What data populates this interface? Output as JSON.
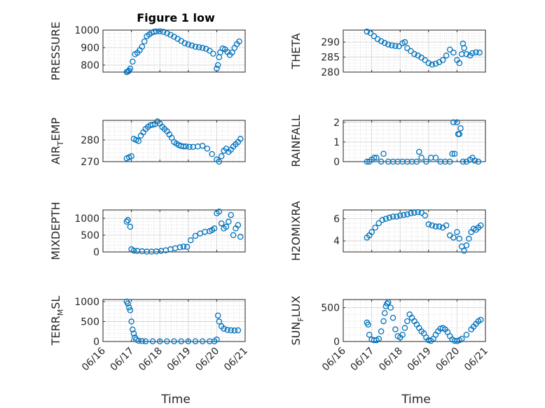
{
  "figure": {
    "title": "Figure 1 low",
    "xlabel": "Time"
  },
  "colors": {
    "marker": "#0072bd",
    "axes": "#262626",
    "grid": "#d0d0d0"
  },
  "x_ticks": [
    "06/16",
    "06/17",
    "06/18",
    "06/19",
    "06/20",
    "06/21"
  ],
  "chart_data": [
    {
      "type": "scatter",
      "ylabel": "PRESSURE",
      "ylabel_sub": "",
      "yticks": [
        "800",
        "900",
        "1000"
      ],
      "ylim": [
        760,
        1000
      ],
      "grid": true,
      "x": [
        "06/16 20:00",
        "06/16 21:00",
        "06/16 22:00",
        "06/16 23:00",
        "06/17 01:00",
        "06/17 03:00",
        "06/17 05:00",
        "06/17 07:00",
        "06/17 09:00",
        "06/17 11:00",
        "06/17 13:00",
        "06/17 15:00",
        "06/17 17:00",
        "06/17 19:00",
        "06/17 21:00",
        "06/18 00:00",
        "06/18 03:00",
        "06/18 06:00",
        "06/18 09:00",
        "06/18 12:00",
        "06/18 15:00",
        "06/18 18:00",
        "06/18 21:00",
        "06/19 00:00",
        "06/19 03:00",
        "06/19 06:00",
        "06/19 09:00",
        "06/19 12:00",
        "06/19 15:00",
        "06/19 18:00",
        "06/19 21:00",
        "06/20 00:00",
        "06/20 01:00",
        "06/20 02:00",
        "06/20 03:00",
        "06/20 05:00",
        "06/20 07:00",
        "06/20 09:00",
        "06/20 11:00",
        "06/20 13:00",
        "06/20 15:00",
        "06/20 17:00",
        "06/20 19:00"
      ],
      "values": [
        760,
        763,
        768,
        780,
        820,
        862,
        870,
        885,
        905,
        935,
        965,
        975,
        985,
        990,
        992,
        993,
        990,
        982,
        973,
        962,
        950,
        938,
        925,
        918,
        912,
        905,
        902,
        898,
        893,
        882,
        865,
        780,
        800,
        845,
        873,
        895,
        890,
        875,
        858,
        872,
        898,
        920,
        935
      ]
    },
    {
      "type": "scatter",
      "ylabel": "THETA",
      "ylabel_sub": "",
      "yticks": [
        "280",
        "285",
        "290"
      ],
      "ylim": [
        280,
        294
      ],
      "grid": true,
      "x": [
        "06/16 20:00",
        "06/16 23:00",
        "06/17 02:00",
        "06/17 05:00",
        "06/17 08:00",
        "06/17 11:00",
        "06/17 14:00",
        "06/17 17:00",
        "06/17 20:00",
        "06/17 23:00",
        "06/18 02:00",
        "06/18 04:00",
        "06/18 06:00",
        "06/18 09:00",
        "06/18 12:00",
        "06/18 15:00",
        "06/18 18:00",
        "06/18 21:00",
        "06/19 00:00",
        "06/19 03:00",
        "06/19 06:00",
        "06/19 09:00",
        "06/19 12:00",
        "06/19 15:00",
        "06/19 18:00",
        "06/19 21:00",
        "06/20 00:00",
        "06/20 02:00",
        "06/20 04:00",
        "06/20 05:00",
        "06/20 06:00",
        "06/20 08:00",
        "06/20 11:00",
        "06/20 13:00",
        "06/20 16:00",
        "06/20 19:00"
      ],
      "values": [
        293.5,
        293,
        292,
        291,
        290.3,
        289.7,
        289.2,
        288.9,
        288.7,
        288.6,
        289.6,
        290,
        288,
        287,
        286,
        285.5,
        284.8,
        284,
        283,
        282.5,
        282.8,
        283.3,
        284,
        285.5,
        287.5,
        286.5,
        284,
        283,
        286,
        289.5,
        288,
        286,
        285.5,
        286.3,
        286.6,
        286.5
      ]
    },
    {
      "type": "scatter",
      "ylabel": "AIR",
      "ylabel_sub": "T",
      "ylabel_suffix": "EMP",
      "yticks": [
        "270",
        "280"
      ],
      "ylim": [
        270,
        289
      ],
      "grid": true,
      "x": [
        "06/16 20:00",
        "06/16 22:00",
        "06/17 00:00",
        "06/17 02:00",
        "06/17 04:00",
        "06/17 06:00",
        "06/17 08:00",
        "06/17 10:00",
        "06/17 12:00",
        "06/17 14:00",
        "06/17 16:00",
        "06/17 18:00",
        "06/17 20:00",
        "06/17 22:00",
        "06/18 00:00",
        "06/18 02:00",
        "06/18 04:00",
        "06/18 06:00",
        "06/18 08:00",
        "06/18 10:00",
        "06/18 12:00",
        "06/18 14:00",
        "06/18 16:00",
        "06/18 18:00",
        "06/18 20:00",
        "06/18 22:00",
        "06/19 01:00",
        "06/19 04:00",
        "06/19 08:00",
        "06/19 12:00",
        "06/19 16:00",
        "06/19 20:00",
        "06/20 00:00",
        "06/20 02:00",
        "06/20 04:00",
        "06/20 06:00",
        "06/20 08:00",
        "06/20 10:00",
        "06/20 12:00",
        "06/20 14:00",
        "06/20 16:00",
        "06/20 18:00",
        "06/20 20:00"
      ],
      "values": [
        271.5,
        272,
        272.5,
        280.5,
        280,
        279.5,
        282,
        283.5,
        285,
        286,
        286.8,
        287,
        287.3,
        288.5,
        287.5,
        286,
        285,
        284,
        282.5,
        281,
        279,
        278.3,
        277.6,
        277.2,
        277,
        277,
        276.8,
        276.8,
        277,
        277.3,
        276,
        273.5,
        271,
        270,
        272.5,
        275,
        276,
        274.5,
        275.5,
        277,
        278,
        279,
        280.5
      ]
    },
    {
      "type": "scatter",
      "ylabel": "RAINFALL",
      "ylabel_sub": "",
      "yticks": [
        "0",
        "1",
        "2"
      ],
      "ylim": [
        0,
        2.1
      ],
      "grid": true,
      "x": [
        "06/16 20:00",
        "06/16 22:00",
        "06/17 00:00",
        "06/17 02:00",
        "06/17 04:00",
        "06/17 08:00",
        "06/17 10:00",
        "06/17 14:00",
        "06/17 18:00",
        "06/17 22:00",
        "06/18 02:00",
        "06/18 06:00",
        "06/18 10:00",
        "06/18 14:00",
        "06/18 16:00",
        "06/18 18:00",
        "06/18 22:00",
        "06/19 02:00",
        "06/19 06:00",
        "06/19 10:00",
        "06/19 14:00",
        "06/19 18:00",
        "06/19 20:00",
        "06/19 21:00",
        "06/19 22:00",
        "06/20 00:00",
        "06/20 01:00",
        "06/20 02:00",
        "06/20 03:00",
        "06/20 05:00",
        "06/20 08:00",
        "06/20 11:00",
        "06/20 13:00",
        "06/20 15:00",
        "06/20 18:00"
      ],
      "values": [
        0,
        0,
        0.1,
        0.2,
        0.2,
        0,
        0.4,
        0,
        0,
        0,
        0,
        0,
        0,
        0,
        0.5,
        0.2,
        0,
        0.2,
        0.2,
        0,
        0,
        0,
        0.4,
        2,
        0.4,
        2,
        1.4,
        1.4,
        1.7,
        0,
        0,
        0.1,
        0.2,
        0.05,
        0
      ]
    },
    {
      "type": "scatter",
      "ylabel": "MIXDEPTH",
      "ylabel_sub": "",
      "yticks": [
        "0",
        "500",
        "1000"
      ],
      "ylim": [
        0,
        1250
      ],
      "grid": true,
      "x": [
        "06/16 20:00",
        "06/16 21:00",
        "06/16 23:00",
        "06/17 00:00",
        "06/17 02:00",
        "06/17 05:00",
        "06/17 09:00",
        "06/17 13:00",
        "06/17 17:00",
        "06/17 21:00",
        "06/18 01:00",
        "06/18 05:00",
        "06/18 09:00",
        "06/18 13:00",
        "06/18 17:00",
        "06/18 20:00",
        "06/18 23:00",
        "06/19 02:00",
        "06/19 06:00",
        "06/19 10:00",
        "06/19 14:00",
        "06/19 18:00",
        "06/19 20:00",
        "06/19 22:00",
        "06/20 00:00",
        "06/20 02:00",
        "06/20 04:00",
        "06/20 06:00",
        "06/20 08:00",
        "06/20 10:00",
        "06/20 12:00",
        "06/20 14:00",
        "06/20 16:00",
        "06/20 18:00",
        "06/20 20:00"
      ],
      "values": [
        900,
        950,
        750,
        80,
        40,
        30,
        20,
        10,
        10,
        15,
        30,
        50,
        80,
        110,
        140,
        160,
        150,
        350,
        480,
        550,
        600,
        620,
        650,
        700,
        1150,
        1200,
        850,
        700,
        750,
        900,
        1100,
        500,
        700,
        800,
        450
      ]
    },
    {
      "type": "scatter",
      "ylabel": "H2OMIXRA",
      "ylabel_sub": "",
      "yticks": [
        "4",
        "6"
      ],
      "ylim": [
        3,
        6.8
      ],
      "grid": true,
      "x": [
        "06/16 20:00",
        "06/16 22:00",
        "06/17 00:00",
        "06/17 03:00",
        "06/17 06:00",
        "06/17 09:00",
        "06/17 12:00",
        "06/17 15:00",
        "06/17 18:00",
        "06/17 21:00",
        "06/18 00:00",
        "06/18 03:00",
        "06/18 06:00",
        "06/18 09:00",
        "06/18 12:00",
        "06/18 15:00",
        "06/18 18:00",
        "06/18 21:00",
        "06/19 00:00",
        "06/19 03:00",
        "06/19 06:00",
        "06/19 09:00",
        "06/19 12:00",
        "06/19 15:00",
        "06/19 18:00",
        "06/19 21:00",
        "06/20 00:00",
        "06/20 02:00",
        "06/20 04:00",
        "06/20 06:00",
        "06/20 08:00",
        "06/20 10:00",
        "06/20 12:00",
        "06/20 14:00",
        "06/20 16:00",
        "06/20 18:00",
        "06/20 20:00"
      ],
      "values": [
        4.3,
        4.5,
        4.8,
        5.2,
        5.6,
        5.9,
        6.0,
        6.1,
        6.2,
        6.2,
        6.3,
        6.35,
        6.4,
        6.5,
        6.55,
        6.6,
        6.55,
        6.3,
        5.5,
        5.4,
        5.3,
        5.3,
        5.2,
        5.4,
        4.5,
        4.3,
        4.8,
        4.2,
        3.5,
        3.1,
        3.6,
        4.2,
        4.8,
        5.1,
        5.0,
        5.2,
        5.4
      ]
    },
    {
      "type": "scatter",
      "ylabel": "TERR",
      "ylabel_sub": "M",
      "ylabel_suffix": "SL",
      "yticks": [
        "0",
        "500",
        "1000"
      ],
      "ylim": [
        0,
        1050
      ],
      "grid": true,
      "x": [
        "06/16 20:00",
        "06/16 21:00",
        "06/16 22:00",
        "06/16 23:00",
        "06/17 00:00",
        "06/17 01:00",
        "06/17 02:00",
        "06/17 03:00",
        "06/17 04:00",
        "06/17 06:00",
        "06/17 09:00",
        "06/17 12:00",
        "06/17 18:00",
        "06/18 00:00",
        "06/18 06:00",
        "06/18 12:00",
        "06/18 18:00",
        "06/19 00:00",
        "06/19 06:00",
        "06/19 12:00",
        "06/19 18:00",
        "06/19 22:00",
        "06/20 00:00",
        "06/20 01:00",
        "06/20 02:00",
        "06/20 04:00",
        "06/20 06:00",
        "06/20 09:00",
        "06/20 12:00",
        "06/20 15:00",
        "06/20 18:00"
      ],
      "values": [
        1000,
        950,
        850,
        780,
        500,
        300,
        200,
        100,
        50,
        20,
        10,
        5,
        5,
        5,
        5,
        5,
        5,
        5,
        5,
        5,
        5,
        5,
        50,
        650,
        500,
        380,
        320,
        290,
        280,
        275,
        280
      ]
    },
    {
      "type": "scatter",
      "ylabel": "SUN",
      "ylabel_sub": "F",
      "ylabel_suffix": "LUX",
      "yticks": [
        "0",
        "500"
      ],
      "ylim": [
        0,
        620
      ],
      "grid": true,
      "x": [
        "06/16 20:00",
        "06/16 21:00",
        "06/16 22:00",
        "06/17 00:00",
        "06/17 02:00",
        "06/17 04:00",
        "06/17 06:00",
        "06/17 08:00",
        "06/17 10:00",
        "06/17 11:00",
        "06/17 12:00",
        "06/17 13:00",
        "06/17 14:00",
        "06/17 16:00",
        "06/17 18:00",
        "06/17 20:00",
        "06/17 22:00",
        "06/18 00:00",
        "06/18 02:00",
        "06/18 04:00",
        "06/18 06:00",
        "06/18 08:00",
        "06/18 10:00",
        "06/18 12:00",
        "06/18 14:00",
        "06/18 16:00",
        "06/18 18:00",
        "06/18 20:00",
        "06/18 22:00",
        "06/19 00:00",
        "06/19 02:00",
        "06/19 04:00",
        "06/19 06:00",
        "06/19 08:00",
        "06/19 10:00",
        "06/19 12:00",
        "06/19 14:00",
        "06/19 16:00",
        "06/19 18:00",
        "06/19 20:00",
        "06/19 22:00",
        "06/20 00:00",
        "06/20 02:00",
        "06/20 04:00",
        "06/20 08:00",
        "06/20 12:00",
        "06/20 14:00",
        "06/20 16:00",
        "06/20 18:00",
        "06/20 20:00"
      ],
      "values": [
        280,
        250,
        100,
        30,
        20,
        20,
        40,
        150,
        300,
        420,
        520,
        560,
        580,
        500,
        350,
        180,
        80,
        60,
        100,
        200,
        300,
        400,
        350,
        300,
        250,
        200,
        150,
        120,
        60,
        20,
        10,
        40,
        100,
        150,
        190,
        200,
        180,
        140,
        80,
        30,
        10,
        5,
        20,
        40,
        100,
        180,
        220,
        260,
        300,
        320
      ]
    }
  ]
}
